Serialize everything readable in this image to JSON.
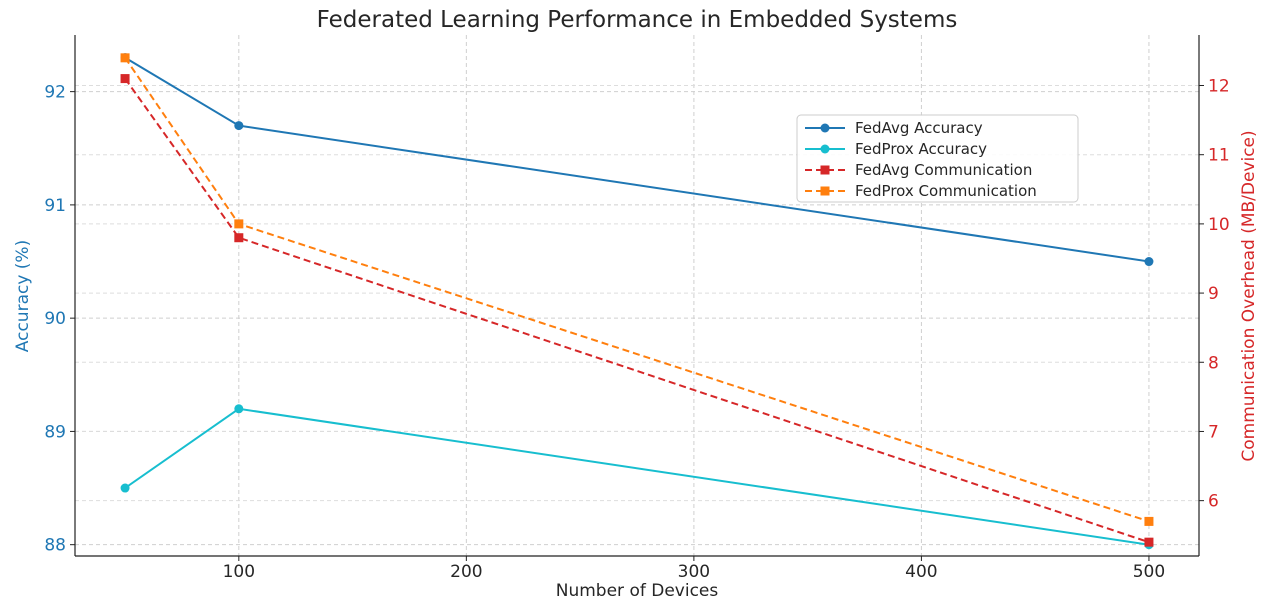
{
  "chart_data": {
    "type": "line",
    "title": "Federated Learning Performance in Embedded Systems",
    "xlabel": "Number of Devices",
    "ylabel_left": "Accuracy (%)",
    "ylabel_right": "Communication Overhead (MB/Device)",
    "x": [
      50,
      100,
      500
    ],
    "xlim": [
      28,
      522
    ],
    "xticks": [
      100,
      200,
      300,
      400,
      500
    ],
    "ylim_left": [
      87.9,
      92.5
    ],
    "yticks_left": [
      88,
      89,
      90,
      91,
      92
    ],
    "ylim_right": [
      5.2,
      12.73
    ],
    "yticks_right": [
      6,
      7,
      8,
      9,
      10,
      11,
      12
    ],
    "grid": true,
    "legend_position": "upper-right",
    "left_axis_color": "#1f77b4",
    "right_axis_color": "#d62728",
    "series": [
      {
        "name": "FedAvg Accuracy",
        "axis": "left",
        "values": [
          92.3,
          91.7,
          90.5
        ],
        "color": "#1f77b4",
        "style": "solid",
        "marker": "circle"
      },
      {
        "name": "FedProx Accuracy",
        "axis": "left",
        "values": [
          88.5,
          89.2,
          88.0
        ],
        "color": "#17becf",
        "style": "solid",
        "marker": "circle"
      },
      {
        "name": "FedAvg Communication",
        "axis": "right",
        "values": [
          12.1,
          9.8,
          5.4
        ],
        "color": "#d62728",
        "style": "dashed",
        "marker": "square"
      },
      {
        "name": "FedProx Communication",
        "axis": "right",
        "values": [
          12.4,
          10.0,
          5.7
        ],
        "color": "#ff7f0e",
        "style": "dashed",
        "marker": "square"
      }
    ]
  }
}
